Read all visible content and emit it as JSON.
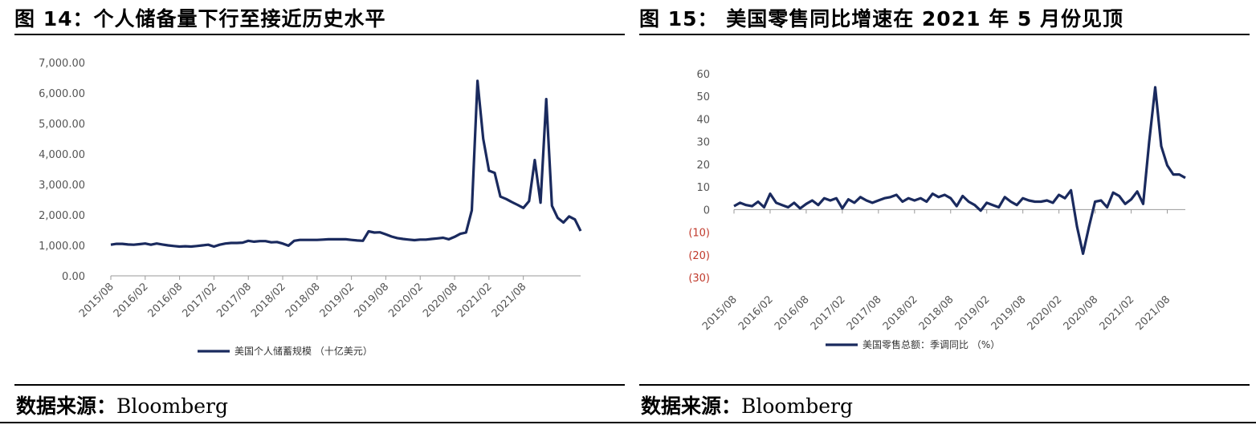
{
  "left": {
    "title": "图 14：个人储备量下行至接近历史水平",
    "source_label": "数据来源：",
    "source_value": "Bloomberg"
  },
  "right": {
    "title": "图 15：  美国零售同比增速在 2021 年 5 月份见顶",
    "source_label": "数据来源：",
    "source_value": "Bloomberg"
  },
  "chart_data": [
    {
      "type": "line",
      "title": "",
      "xlabel": "",
      "ylabel": "",
      "ylim": [
        0,
        7000
      ],
      "yticks": [
        0,
        1000,
        2000,
        3000,
        4000,
        5000,
        6000,
        7000
      ],
      "ytick_labels": [
        "0.00",
        "1,000.00",
        "2,000.00",
        "3,000.00",
        "4,000.00",
        "5,000.00",
        "6,000.00",
        "7,000.00"
      ],
      "xticks": [
        "2015/08",
        "2016/02",
        "2016/08",
        "2017/02",
        "2017/08",
        "2018/02",
        "2018/08",
        "2019/02",
        "2019/08",
        "2020/02",
        "2020/08",
        "2021/02",
        "2021/08"
      ],
      "x_start": "2015/08",
      "grid": false,
      "legend": "bottom",
      "color": "#1a2a5e",
      "series": [
        {
          "name": "美国个人储蓄规模 （十亿美元）",
          "values": [
            1020,
            1050,
            1050,
            1030,
            1020,
            1040,
            1060,
            1020,
            1060,
            1030,
            1000,
            980,
            960,
            970,
            960,
            980,
            1000,
            1020,
            960,
            1020,
            1060,
            1080,
            1080,
            1090,
            1150,
            1120,
            1140,
            1140,
            1100,
            1110,
            1060,
            990,
            1150,
            1180,
            1180,
            1180,
            1180,
            1190,
            1200,
            1200,
            1200,
            1200,
            1180,
            1160,
            1150,
            1460,
            1420,
            1430,
            1360,
            1290,
            1240,
            1210,
            1190,
            1170,
            1190,
            1190,
            1210,
            1230,
            1250,
            1200,
            1280,
            1380,
            1420,
            2150,
            6400,
            4500,
            3450,
            3380,
            2600,
            2520,
            2420,
            2330,
            2230,
            2450,
            3800,
            2400,
            5800,
            2300,
            1900,
            1750,
            1950,
            1850,
            1470
          ]
        }
      ]
    },
    {
      "type": "line",
      "title": "",
      "xlabel": "",
      "ylabel": "",
      "ylim": [
        -30,
        60
      ],
      "yticks": [
        -30,
        -20,
        -10,
        0,
        10,
        20,
        30,
        40,
        50,
        60
      ],
      "ytick_labels": [
        "(30)",
        "(20)",
        "(10)",
        "0",
        "10",
        "20",
        "30",
        "40",
        "50",
        "60"
      ],
      "xticks": [
        "2015/08",
        "2016/02",
        "2016/08",
        "2017/02",
        "2017/08",
        "2018/02",
        "2018/08",
        "2019/02",
        "2019/08",
        "2020/02",
        "2020/08",
        "2021/02",
        "2021/08"
      ],
      "x_start": "2015/08",
      "grid": false,
      "legend": "bottom",
      "color": "#1a2a5e",
      "series": [
        {
          "name": "美国零售总额：季调同比 （%）",
          "values": [
            1.5,
            3,
            2,
            1.5,
            3.5,
            1,
            7,
            3,
            2,
            1,
            3,
            0.5,
            2.5,
            4,
            2,
            5,
            4,
            5,
            0.5,
            4.5,
            3,
            5.5,
            4,
            3,
            4,
            5,
            5.5,
            6.5,
            3.5,
            5,
            4,
            5,
            3.5,
            7,
            5.5,
            6.5,
            5,
            1.5,
            6,
            3.5,
            2,
            -0.5,
            3,
            2,
            1,
            5.5,
            3.5,
            2,
            5,
            4,
            3.5,
            3.5,
            4,
            3,
            6.5,
            5,
            8.5,
            -7.5,
            -19.5,
            -7.5,
            3.5,
            4,
            1,
            7.5,
            6,
            2.5,
            4.5,
            8,
            2.5,
            30,
            54,
            28,
            19.5,
            15.5,
            15.5,
            14
          ]
        }
      ]
    }
  ]
}
